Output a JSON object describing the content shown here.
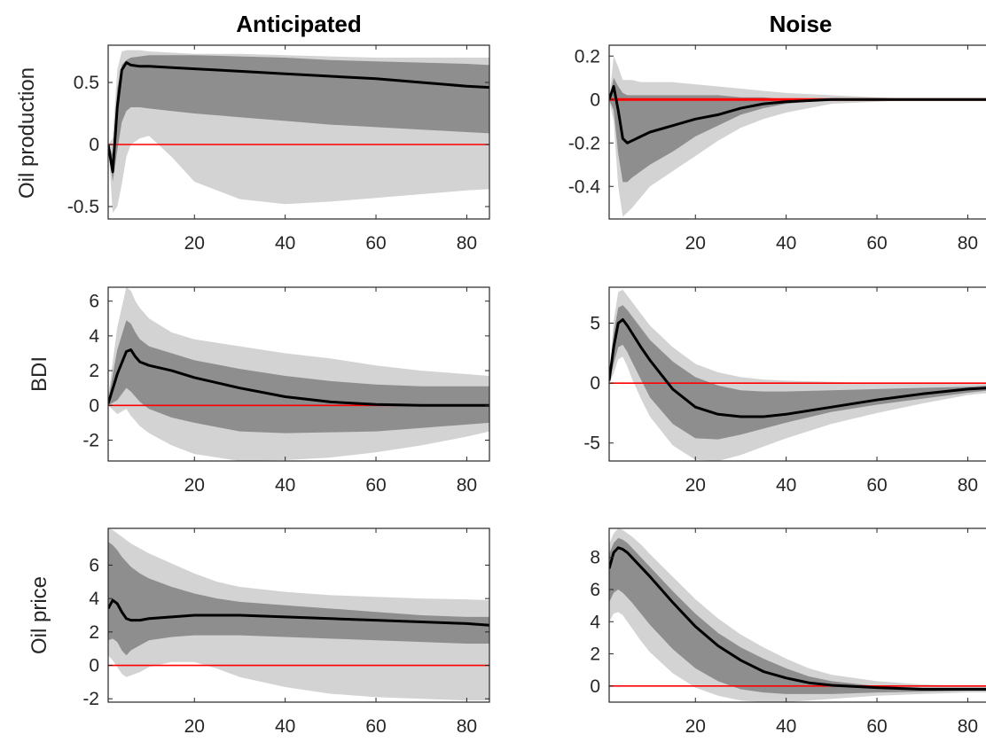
{
  "chart_data": [
    {
      "type": "line",
      "column_title": "Anticipated",
      "ylabel": "Oil production",
      "xlim": [
        1,
        85
      ],
      "ylim": [
        -0.6,
        0.8
      ],
      "xticks": [
        20,
        40,
        60,
        80
      ],
      "yticks": [
        -0.5,
        0,
        0.5
      ],
      "ytick_labels": [
        "-0.5",
        "0",
        "0.5"
      ],
      "zero_line_color": "#ff0000",
      "x": [
        1,
        2,
        3,
        4,
        5,
        6,
        8,
        10,
        15,
        20,
        30,
        40,
        50,
        60,
        70,
        80,
        85
      ],
      "median": [
        0.0,
        -0.22,
        0.3,
        0.6,
        0.66,
        0.64,
        0.63,
        0.63,
        0.62,
        0.61,
        0.59,
        0.57,
        0.55,
        0.53,
        0.5,
        0.47,
        0.46
      ],
      "band68_lower": [
        0.0,
        -0.3,
        -0.05,
        0.18,
        0.27,
        0.3,
        0.3,
        0.29,
        0.27,
        0.25,
        0.22,
        0.19,
        0.16,
        0.14,
        0.12,
        0.1,
        0.09
      ],
      "band68_upper": [
        0.0,
        -0.08,
        0.45,
        0.64,
        0.68,
        0.7,
        0.71,
        0.72,
        0.72,
        0.72,
        0.71,
        0.7,
        0.68,
        0.67,
        0.66,
        0.65,
        0.64
      ],
      "band90_lower": [
        0.0,
        -0.55,
        -0.5,
        -0.32,
        -0.1,
        0.0,
        0.05,
        0.07,
        -0.1,
        -0.3,
        -0.44,
        -0.48,
        -0.46,
        -0.43,
        -0.4,
        -0.37,
        -0.36
      ],
      "band90_upper": [
        0.0,
        0.05,
        0.6,
        0.75,
        0.76,
        0.76,
        0.76,
        0.75,
        0.74,
        0.73,
        0.73,
        0.72,
        0.71,
        0.7,
        0.7,
        0.7,
        0.7
      ]
    },
    {
      "type": "line",
      "column_title": "Noise",
      "ylabel": "",
      "xlim": [
        1,
        85
      ],
      "ylim": [
        -0.55,
        0.25
      ],
      "xticks": [
        20,
        40,
        60,
        80
      ],
      "yticks": [
        -0.4,
        -0.2,
        0,
        0.2
      ],
      "ytick_labels": [
        "-0.4",
        "-0.2",
        "0",
        "0.2"
      ],
      "zero_line_color": "#ff0000",
      "x": [
        1,
        2,
        3,
        4,
        5,
        6,
        8,
        10,
        15,
        20,
        25,
        30,
        35,
        40,
        50,
        60,
        70,
        80,
        85
      ],
      "median": [
        0.0,
        0.06,
        -0.05,
        -0.18,
        -0.2,
        -0.19,
        -0.17,
        -0.15,
        -0.12,
        -0.09,
        -0.07,
        -0.04,
        -0.02,
        -0.01,
        0.0,
        0.0,
        0.0,
        0.0,
        0.0
      ],
      "band68_lower": [
        0.0,
        -0.05,
        -0.25,
        -0.38,
        -0.38,
        -0.36,
        -0.33,
        -0.3,
        -0.24,
        -0.17,
        -0.12,
        -0.07,
        -0.04,
        -0.02,
        0.0,
        0.0,
        0.0,
        0.0,
        0.0
      ],
      "band68_upper": [
        0.0,
        0.1,
        0.06,
        0.03,
        0.02,
        0.02,
        0.02,
        0.02,
        0.02,
        0.02,
        0.02,
        0.01,
        0.01,
        0.0,
        0.0,
        0.0,
        0.0,
        0.0,
        0.0
      ],
      "band90_lower": [
        0.0,
        -0.1,
        -0.4,
        -0.54,
        -0.52,
        -0.5,
        -0.45,
        -0.4,
        -0.33,
        -0.26,
        -0.19,
        -0.13,
        -0.09,
        -0.06,
        -0.02,
        -0.01,
        0.0,
        0.0,
        0.0
      ],
      "band90_upper": [
        0.0,
        0.2,
        0.15,
        0.09,
        0.09,
        0.09,
        0.08,
        0.08,
        0.08,
        0.07,
        0.06,
        0.05,
        0.04,
        0.03,
        0.02,
        0.01,
        0.0,
        0.0,
        0.0
      ]
    },
    {
      "type": "line",
      "column_title": "",
      "ylabel": "BDI",
      "xlim": [
        1,
        85
      ],
      "ylim": [
        -3.2,
        6.8
      ],
      "xticks": [
        20,
        40,
        60,
        80
      ],
      "yticks": [
        -2,
        0,
        2,
        4,
        6
      ],
      "ytick_labels": [
        "-2",
        "0",
        "2",
        "4",
        "6"
      ],
      "zero_line_color": "#ff0000",
      "x": [
        1,
        3,
        5,
        6,
        7,
        8,
        10,
        15,
        20,
        30,
        40,
        50,
        60,
        70,
        80,
        85
      ],
      "median": [
        0.1,
        1.8,
        3.1,
        3.2,
        2.8,
        2.5,
        2.3,
        2.0,
        1.6,
        1.0,
        0.5,
        0.2,
        0.05,
        0.0,
        0.0,
        0.0
      ],
      "band68_lower": [
        0.0,
        0.3,
        1.0,
        0.8,
        0.5,
        0.2,
        -0.2,
        -0.7,
        -1.0,
        -1.5,
        -1.6,
        -1.55,
        -1.5,
        -1.3,
        -1.1,
        -1.0
      ],
      "band68_upper": [
        0.3,
        3.2,
        4.9,
        4.7,
        4.2,
        3.8,
        3.4,
        3.0,
        2.6,
        2.1,
        1.7,
        1.4,
        1.2,
        1.1,
        1.1,
        1.1
      ],
      "band90_lower": [
        0.0,
        -0.5,
        -0.2,
        -0.6,
        -0.9,
        -1.2,
        -1.6,
        -2.3,
        -2.8,
        -3.2,
        -3.15,
        -3.0,
        -2.7,
        -2.3,
        -1.8,
        -1.5
      ],
      "band90_upper": [
        0.5,
        4.5,
        6.8,
        6.6,
        6.0,
        5.6,
        5.0,
        4.2,
        3.8,
        3.4,
        3.0,
        2.7,
        2.3,
        2.0,
        1.8,
        1.7
      ]
    },
    {
      "type": "line",
      "column_title": "",
      "ylabel": "",
      "xlim": [
        1,
        85
      ],
      "ylim": [
        -6.5,
        8
      ],
      "xticks": [
        20,
        40,
        60,
        80
      ],
      "yticks": [
        -5,
        0,
        5
      ],
      "ytick_labels": [
        "-5",
        "0",
        "5"
      ],
      "zero_line_color": "#ff0000",
      "x": [
        1,
        2,
        3,
        4,
        5,
        6,
        8,
        10,
        15,
        20,
        25,
        30,
        35,
        40,
        50,
        60,
        70,
        80,
        85
      ],
      "median": [
        0.2,
        3.0,
        5.0,
        5.3,
        4.8,
        4.2,
        3.0,
        1.9,
        -0.5,
        -2.0,
        -2.6,
        -2.8,
        -2.8,
        -2.6,
        -2.0,
        -1.4,
        -0.9,
        -0.5,
        -0.4
      ],
      "band68_lower": [
        0.1,
        1.6,
        3.0,
        3.2,
        2.6,
        1.8,
        0.3,
        -1.2,
        -3.4,
        -4.6,
        -4.7,
        -4.3,
        -3.8,
        -3.3,
        -2.4,
        -1.8,
        -1.3,
        -0.8,
        -0.6
      ],
      "band68_upper": [
        0.3,
        4.2,
        6.3,
        6.5,
        6.1,
        5.6,
        4.6,
        3.6,
        1.8,
        0.5,
        -0.2,
        -0.6,
        -0.7,
        -0.7,
        -0.6,
        -0.5,
        -0.4,
        -0.3,
        -0.2
      ],
      "band90_lower": [
        0.0,
        0.8,
        2.0,
        2.2,
        1.4,
        0.4,
        -1.3,
        -2.8,
        -5.2,
        -6.4,
        -6.5,
        -6.0,
        -5.3,
        -4.6,
        -3.4,
        -2.5,
        -1.7,
        -1.0,
        -0.8
      ],
      "band90_upper": [
        0.4,
        5.2,
        7.6,
        7.8,
        7.3,
        6.8,
        5.8,
        4.8,
        3.0,
        1.6,
        0.9,
        0.5,
        0.3,
        0.2,
        0.1,
        0.0,
        0.0,
        0.0,
        0.0
      ]
    },
    {
      "type": "line",
      "column_title": "",
      "ylabel": "Oil price",
      "xlim": [
        1,
        85
      ],
      "ylim": [
        -2.2,
        8.2
      ],
      "xticks": [
        20,
        40,
        60,
        80
      ],
      "yticks": [
        -2,
        0,
        2,
        4,
        6
      ],
      "ytick_labels": [
        "-2",
        "0",
        "2",
        "4",
        "6"
      ],
      "zero_line_color": "#ff0000",
      "x": [
        1,
        2,
        3,
        4,
        5,
        6,
        8,
        10,
        15,
        20,
        25,
        30,
        40,
        50,
        60,
        70,
        80,
        85
      ],
      "median": [
        3.4,
        3.9,
        3.7,
        3.2,
        2.8,
        2.7,
        2.7,
        2.8,
        2.9,
        3.0,
        3.0,
        3.0,
        2.9,
        2.8,
        2.7,
        2.6,
        2.5,
        2.4
      ],
      "band68_lower": [
        1.5,
        1.6,
        1.4,
        0.9,
        0.6,
        0.9,
        1.2,
        1.5,
        1.7,
        1.8,
        1.8,
        1.8,
        1.7,
        1.6,
        1.5,
        1.4,
        1.3,
        1.3
      ],
      "band68_upper": [
        7.4,
        7.2,
        6.9,
        6.5,
        6.2,
        5.9,
        5.5,
        5.2,
        4.7,
        4.3,
        4.0,
        3.8,
        3.6,
        3.4,
        3.2,
        3.0,
        2.9,
        2.9
      ],
      "band90_lower": [
        0.6,
        0.3,
        -0.1,
        -0.5,
        -0.7,
        -0.6,
        -0.4,
        -0.1,
        0.2,
        0.2,
        -0.2,
        -0.7,
        -1.3,
        -1.7,
        -1.9,
        -2.0,
        -2.1,
        -2.1
      ],
      "band90_upper": [
        8.2,
        8.1,
        7.9,
        7.7,
        7.5,
        7.3,
        7.0,
        6.7,
        6.1,
        5.5,
        5.0,
        4.7,
        4.4,
        4.2,
        4.1,
        4.0,
        3.95,
        3.9
      ]
    },
    {
      "type": "line",
      "column_title": "",
      "ylabel": "",
      "xlim": [
        1,
        85
      ],
      "ylim": [
        -1,
        9.8
      ],
      "xticks": [
        20,
        40,
        60,
        80
      ],
      "yticks": [
        0,
        2,
        4,
        6,
        8
      ],
      "ytick_labels": [
        "0",
        "2",
        "4",
        "6",
        "8"
      ],
      "zero_line_color": "#ff0000",
      "x": [
        1,
        2,
        3,
        4,
        5,
        6,
        8,
        10,
        15,
        20,
        25,
        30,
        35,
        40,
        45,
        50,
        60,
        70,
        80,
        85
      ],
      "median": [
        7.3,
        8.3,
        8.6,
        8.5,
        8.3,
        8.0,
        7.4,
        6.8,
        5.2,
        3.7,
        2.5,
        1.6,
        0.9,
        0.5,
        0.2,
        0.05,
        -0.1,
        -0.2,
        -0.2,
        -0.2
      ],
      "band68_lower": [
        5.2,
        5.8,
        6.0,
        5.8,
        5.5,
        5.2,
        4.5,
        3.8,
        2.3,
        1.1,
        0.3,
        -0.2,
        -0.4,
        -0.5,
        -0.5,
        -0.5,
        -0.4,
        -0.35,
        -0.3,
        -0.3
      ],
      "band68_upper": [
        8.2,
        8.9,
        9.2,
        9.1,
        8.9,
        8.6,
        8.0,
        7.4,
        5.9,
        4.5,
        3.3,
        2.4,
        1.7,
        1.1,
        0.6,
        0.3,
        0.0,
        -0.1,
        -0.1,
        -0.1
      ],
      "band90_lower": [
        4.0,
        4.5,
        4.6,
        4.4,
        4.0,
        3.6,
        2.8,
        2.1,
        0.8,
        -0.1,
        -0.6,
        -0.9,
        -1.0,
        -1.0,
        -0.9,
        -0.8,
        -0.6,
        -0.5,
        -0.4,
        -0.4
      ],
      "band90_upper": [
        8.8,
        9.5,
        9.8,
        9.7,
        9.5,
        9.3,
        8.8,
        8.2,
        6.8,
        5.4,
        4.2,
        3.2,
        2.4,
        1.7,
        1.1,
        0.7,
        0.3,
        0.1,
        0.0,
        0.0
      ]
    }
  ]
}
